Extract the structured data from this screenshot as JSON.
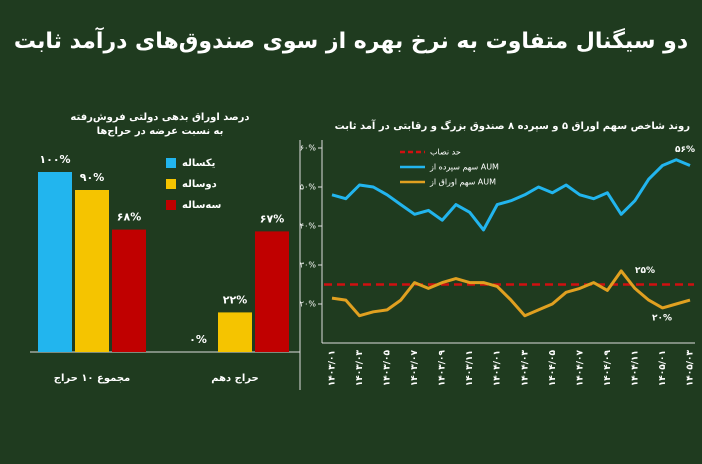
{
  "title": "دو سیگنال متفاوت به نرخ بهره از سوی صندوق‌های درآمد ثابت",
  "chart_data": [
    {
      "type": "bar",
      "title": "درصد اوراق بدهی دولتی فروش‌رفته",
      "subtitle": "به نسبت عرضه در حراج‌ها",
      "categories": [
        "مجموع ۱۰ حراج",
        "حراج دهم"
      ],
      "series": [
        {
          "name": "یکساله",
          "color": "#22b5ee",
          "values": [
            100,
            0
          ],
          "value_labels": [
            "۱۰۰%",
            "۰%"
          ]
        },
        {
          "name": "دوساله",
          "color": "#f5c400",
          "values": [
            90,
            22
          ],
          "value_labels": [
            "۹۰%",
            "۲۲%"
          ]
        },
        {
          "name": "سه‌ساله",
          "color": "#c00000",
          "values": [
            68,
            67
          ],
          "value_labels": [
            "۶۸%",
            "۶۷%"
          ]
        }
      ]
    },
    {
      "type": "line",
      "title": "روند شاخص سهم اوراق ۵ و سپرده ۸ صندوق بزرگ و رقابتی در آمد ثابت",
      "categories": [
        "۱۴۰۳/۰۱",
        null,
        "۱۴۰۳/۰۳",
        null,
        "۱۴۰۳/۰۵",
        null,
        "۱۴۰۳/۰۷",
        null,
        "۱۴۰۳/۰۹",
        null,
        "۱۴۰۳/۱۱",
        null,
        "۱۴۰۴/۰۱",
        null,
        "۱۴۰۴/۰۳",
        null,
        "۱۴۰۴/۰۵",
        null,
        "۱۴۰۴/۰۷",
        null,
        "۱۴۰۴/۰۹",
        null,
        "۱۴۰۴/۱۱",
        null,
        "۱۴۰۵/۰۱",
        null,
        "۱۴۰۵/۰۳"
      ],
      "series": [
        {
          "name": "سهم سپرده از AUM",
          "color": "#22b5ee",
          "values": [
            48,
            47,
            50.5,
            50,
            48,
            45.5,
            43,
            44,
            41.5,
            45.5,
            43.5,
            39,
            45.5,
            46.5,
            48,
            50,
            48.5,
            50.5,
            48,
            47,
            48.5,
            43,
            46.5,
            52,
            55.5,
            57,
            55.5
          ]
        },
        {
          "name": "سهم اوراق از AUM",
          "color": "#e0a020",
          "values": [
            21.5,
            21,
            17,
            18,
            18.5,
            21,
            25.5,
            24,
            25.5,
            26.5,
            25.5,
            25.5,
            24.5,
            21,
            17,
            18.5,
            20,
            23,
            24,
            25.5,
            23.5,
            28.5,
            24,
            21,
            19,
            20,
            21
          ]
        }
      ],
      "threshold": {
        "name": "حد نصاب",
        "value": 25,
        "color": "#d01010"
      },
      "annotations": [
        {
          "label": "۵۶%",
          "value": 56
        },
        {
          "label": "۲۵%",
          "value": 25
        },
        {
          "label": "۲۰%",
          "value": 20
        }
      ],
      "ylim": [
        10,
        60
      ],
      "yticks": [
        {
          "value": 20,
          "label": "۲۰%"
        },
        {
          "value": 30,
          "label": "۳۰%"
        },
        {
          "value": 40,
          "label": "۴۰%"
        },
        {
          "value": 50,
          "label": "۵۰%"
        },
        {
          "value": 60,
          "label": "۶۰%"
        }
      ]
    }
  ]
}
